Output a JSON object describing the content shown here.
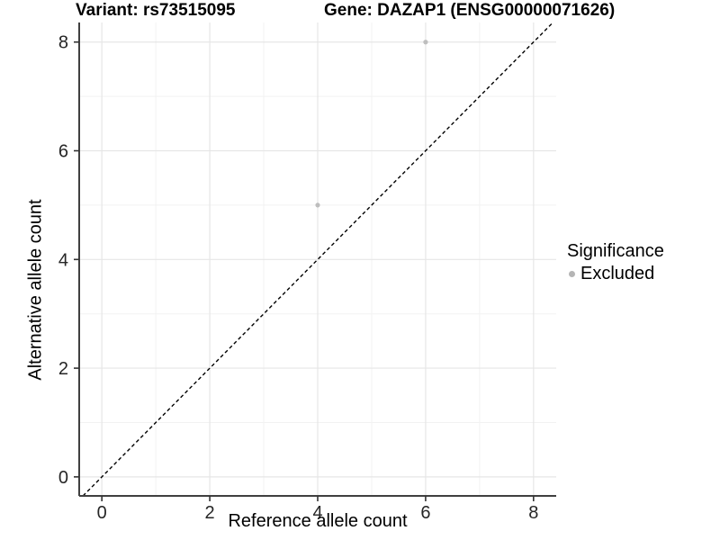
{
  "chart_data": {
    "type": "scatter",
    "title_left": "Variant: rs73515095",
    "title_right": "Gene: DAZAP1 (ENSG00000071626)",
    "xlabel": "Reference allele count",
    "ylabel": "Alternative allele count",
    "xlim": [
      -0.42,
      8.42
    ],
    "ylim": [
      -0.35,
      8.36
    ],
    "x_major_ticks": [
      0,
      2,
      4,
      6,
      8
    ],
    "y_major_ticks": [
      0,
      2,
      4,
      6,
      8
    ],
    "x_minor_gridlines": [
      1,
      3,
      5,
      7
    ],
    "y_minor_gridlines": [
      1,
      3,
      5,
      7
    ],
    "grid": true,
    "identity_line": {
      "style": "dashed",
      "slope": 1,
      "intercept": 0
    },
    "series": [
      {
        "name": "Excluded",
        "color": "#bebebe",
        "points": [
          {
            "x": 4,
            "y": 5
          },
          {
            "x": 6,
            "y": 8
          }
        ]
      }
    ],
    "legend": {
      "title": "Significance",
      "position": "right",
      "items": [
        {
          "label": "Excluded",
          "color": "#b5b5b5"
        }
      ]
    }
  },
  "colors": {
    "background": "#ffffff",
    "grid_major": "#e6e6e6",
    "grid_minor": "#f2f2f2",
    "axis_line": "#404040",
    "tick_mark": "#333333",
    "tick_text": "#262626",
    "identity_line": "#000000",
    "point": "#bebebe"
  }
}
